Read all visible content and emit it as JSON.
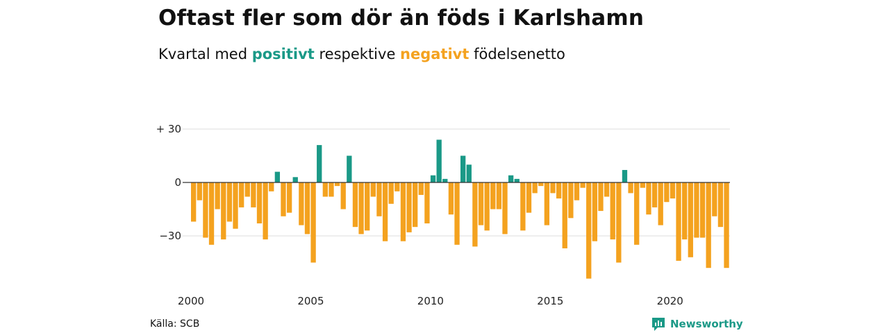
{
  "title": "Oftast fler som dör än föds i Karlshamn",
  "subtitle": {
    "prefix": "Kvartal med ",
    "positive_word": "positivt",
    "middle": " respektive ",
    "negative_word": "negativt",
    "suffix": " födelsenetto"
  },
  "colors": {
    "positive": "#1a9987",
    "negative": "#f4a21f",
    "gridline": "#dddddd",
    "zero_line": "#333333"
  },
  "source": "Källa: SCB",
  "brand": {
    "name": "Newsworthy",
    "icon": "newsworthy-logo-icon"
  },
  "chart_data": {
    "type": "bar",
    "title": "Oftast fler som dör än föds i Karlshamn",
    "subtitle": "Kvartal med positivt respektive negativt födelsenetto",
    "xlabel": "",
    "ylabel": "",
    "x_ticks": [
      "2000",
      "2005",
      "2010",
      "2015",
      "2020"
    ],
    "y_ticks": [
      {
        "value": 30,
        "label": "+ 30"
      },
      {
        "value": 0,
        "label": "0"
      },
      {
        "value": -30,
        "label": "−30"
      }
    ],
    "ylim": [
      -55,
      30
    ],
    "grid": true,
    "first_quarter": "2000 Q1",
    "values": [
      -22,
      -10,
      -31,
      -35,
      -15,
      -32,
      -22,
      -26,
      -14,
      -8,
      -14,
      -23,
      -32,
      -5,
      6,
      -19,
      -17,
      3,
      -24,
      -29,
      -45,
      21,
      -8,
      -8,
      -2,
      -15,
      15,
      -25,
      -29,
      -27,
      -8,
      -19,
      -33,
      -12,
      -5,
      -33,
      -28,
      -25,
      -7,
      -23,
      4,
      24,
      2,
      -18,
      -35,
      15,
      10,
      -36,
      -24,
      -27,
      -15,
      -15,
      -29,
      4,
      2,
      -27,
      -17,
      -6,
      -2,
      -24,
      -6,
      -9,
      -37,
      -20,
      -10,
      -3,
      -54,
      -33,
      -16,
      -8,
      -32,
      -45,
      7,
      -6,
      -35,
      -3,
      -18,
      -14,
      -24,
      -11,
      -9,
      -44,
      -32,
      -42,
      -31,
      -31,
      -48,
      -19,
      -25,
      -48
    ]
  }
}
